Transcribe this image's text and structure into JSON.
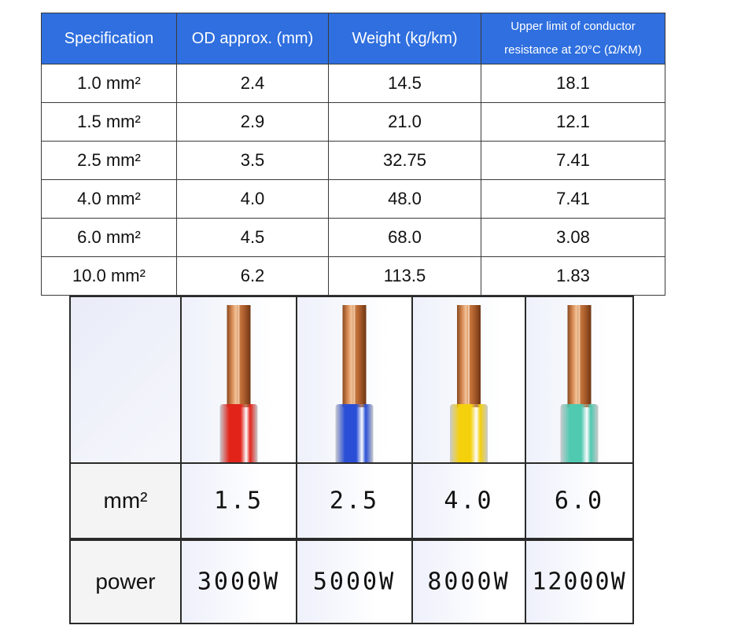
{
  "table": {
    "headers": [
      "Specification",
      "OD approx. (mm)",
      "Weight (kg/km)",
      "Upper limit of conductor resistance at 20°C (Ω/KM)"
    ],
    "header_color": "#2f6fdf",
    "rows": [
      [
        "1.0 mm²",
        "2.4",
        "14.5",
        "18.1"
      ],
      [
        "1.5 mm²",
        "2.9",
        "21.0",
        "12.1"
      ],
      [
        "2.5 mm²",
        "3.5",
        "32.75",
        "7.41"
      ],
      [
        "4.0 mm²",
        "4.0",
        "48.0",
        "7.41"
      ],
      [
        "6.0 mm²",
        "4.5",
        "68.0",
        "3.08"
      ],
      [
        "10.0 mm²",
        "6.2",
        "113.5",
        "1.83"
      ]
    ]
  },
  "terminals": {
    "mm_label": "mm²",
    "power_label": "power",
    "items": [
      {
        "mm": "1.5",
        "power": "3000W",
        "color": "#e2231a",
        "icon": "red-wire-terminal-icon"
      },
      {
        "mm": "2.5",
        "power": "5000W",
        "color": "#2a4fd6",
        "icon": "blue-wire-terminal-icon"
      },
      {
        "mm": "4.0",
        "power": "8000W",
        "color": "#f4d10c",
        "icon": "yellow-wire-terminal-icon"
      },
      {
        "mm": "6.0",
        "power": "12000W",
        "color": "#4fc9b0",
        "icon": "green-wire-terminal-icon"
      }
    ]
  }
}
